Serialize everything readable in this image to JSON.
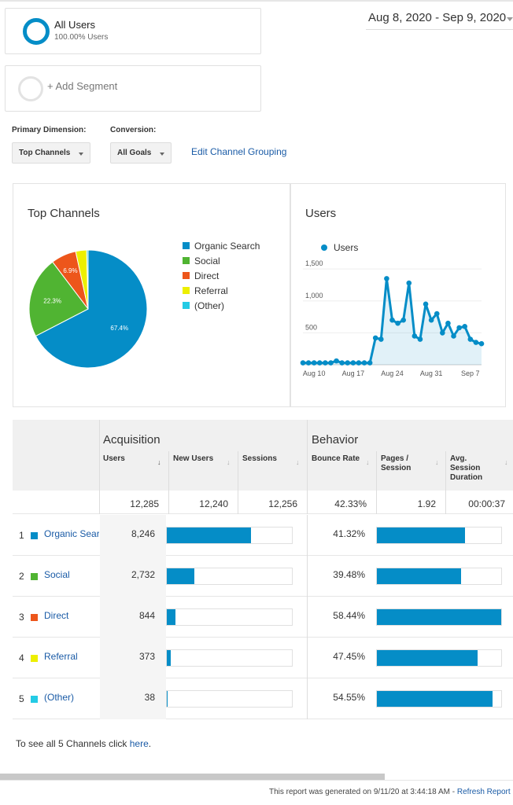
{
  "segments": {
    "primary": {
      "title": "All Users",
      "subtitle": "100.00% Users"
    },
    "add_label": "+ Add Segment"
  },
  "date_range": "Aug 8, 2020 - Sep 9, 2020",
  "controls": {
    "primary_dimension_label": "Primary Dimension:",
    "primary_dimension_value": "Top Channels",
    "conversion_label": "Conversion:",
    "conversion_value": "All Goals",
    "edit_grouping": "Edit Channel Grouping"
  },
  "colors": {
    "organic": "#058dc7",
    "social": "#50b432",
    "direct": "#ed561b",
    "referral": "#edef00",
    "other": "#24cbe5"
  },
  "pie": {
    "title": "Top Channels",
    "legend": [
      "Organic Search",
      "Social",
      "Direct",
      "Referral",
      "(Other)"
    ],
    "labels": [
      "67.4%",
      "22.3%",
      "6.9%"
    ]
  },
  "chart_data": {
    "type": "line",
    "title": "Users",
    "series": [
      {
        "name": "Users",
        "values": [
          30,
          30,
          30,
          30,
          30,
          30,
          60,
          30,
          30,
          30,
          30,
          30,
          30,
          420,
          400,
          1350,
          700,
          650,
          700,
          1280,
          450,
          400,
          950,
          700,
          800,
          500,
          650,
          450,
          580,
          600,
          400,
          350,
          330
        ]
      }
    ],
    "x": [
      "Aug 8",
      "Aug 9",
      "Aug 10",
      "Aug 11",
      "Aug 12",
      "Aug 13",
      "Aug 14",
      "Aug 15",
      "Aug 16",
      "Aug 17",
      "Aug 18",
      "Aug 19",
      "Aug 20",
      "Aug 21",
      "Aug 22",
      "Aug 23",
      "Aug 24",
      "Aug 25",
      "Aug 26",
      "Aug 27",
      "Aug 28",
      "Aug 29",
      "Aug 30",
      "Aug 31",
      "Sep 1",
      "Sep 2",
      "Sep 3",
      "Sep 4",
      "Sep 5",
      "Sep 6",
      "Sep 7",
      "Sep 8",
      "Sep 9"
    ],
    "x_ticks": [
      "Aug 10",
      "Aug 17",
      "Aug 24",
      "Aug 31",
      "Sep 7"
    ],
    "y_ticks": [
      "500",
      "1,000",
      "1,500"
    ],
    "ylim": [
      0,
      1650
    ]
  },
  "table": {
    "group_acquisition": "Acquisition",
    "group_behavior": "Behavior",
    "columns": [
      "Users",
      "New Users",
      "Sessions",
      "Bounce Rate",
      "Pages / Session",
      "Avg. Session Duration"
    ],
    "sort_arrow": "↓",
    "totals": [
      "12,285",
      "12,240",
      "12,256",
      "42.33%",
      "1.92",
      "00:00:37"
    ],
    "rows": [
      {
        "num": "1",
        "name": "Organic Search",
        "users": "8,246",
        "users_frac": 0.671,
        "bounce": "41.32%",
        "bounce_frac": 0.707,
        "color": "#058dc7"
      },
      {
        "num": "2",
        "name": "Social",
        "users": "2,732",
        "users_frac": 0.222,
        "bounce": "39.48%",
        "bounce_frac": 0.676,
        "color": "#50b432"
      },
      {
        "num": "3",
        "name": "Direct",
        "users": "844",
        "users_frac": 0.069,
        "bounce": "58.44%",
        "bounce_frac": 1.0,
        "color": "#ed561b"
      },
      {
        "num": "4",
        "name": "Referral",
        "users": "373",
        "users_frac": 0.03,
        "bounce": "47.45%",
        "bounce_frac": 0.812,
        "color": "#edef00"
      },
      {
        "num": "5",
        "name": "(Other)",
        "users": "38",
        "users_frac": 0.004,
        "bounce": "54.55%",
        "bounce_frac": 0.933,
        "color": "#24cbe5"
      }
    ]
  },
  "footer": {
    "see_all_prefix": "To see all 5 Channels click ",
    "see_all_link": "here",
    "see_all_suffix": ".",
    "generated": "This report was generated on 9/11/20 at 3:44:18 AM - ",
    "refresh": "Refresh Report"
  }
}
